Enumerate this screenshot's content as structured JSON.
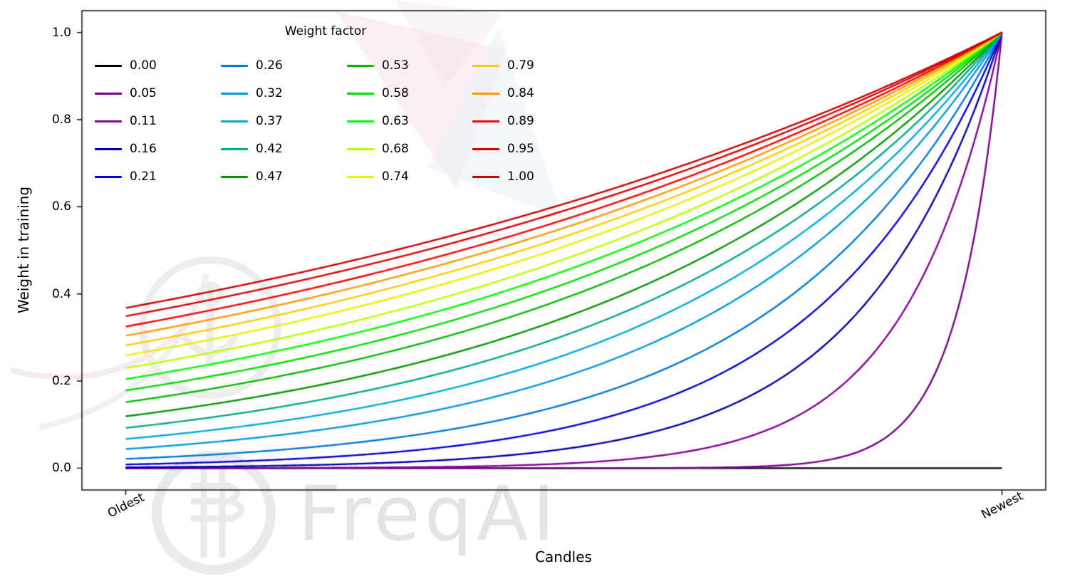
{
  "watermark": {
    "text": "FreqAI"
  },
  "chart_data": {
    "type": "line",
    "title": "",
    "xlabel": "Candles",
    "ylabel": "Weight in training",
    "x_tick_labels": [
      "Oldest",
      "Newest"
    ],
    "y_ticks": [
      "1.0",
      "0.8",
      "0.6",
      "0.4",
      "0.2",
      "0.0"
    ],
    "y_tick_values": [
      1.0,
      0.8,
      0.6,
      0.4,
      0.2,
      0.0
    ],
    "ylim": [
      0.0,
      1.0
    ],
    "grid": false,
    "legend": {
      "title": "Weight factor",
      "position": "upper left",
      "columns": 4,
      "rows": 5
    },
    "curve_formula": "weight(x) = exp(-(1 - x) / weight_factor) for x in [0,1]; weight_factor = 0 gives a flat line at 0; all curves converge to 1.0 at Newest",
    "series": [
      {
        "label": "0.00",
        "weight_factor": 0.0,
        "color": "#000000",
        "oldest_value": 0.0,
        "newest_value": 0.0
      },
      {
        "label": "0.05",
        "weight_factor": 0.05,
        "color": "#770088",
        "oldest_value": 0.0,
        "newest_value": 1.0
      },
      {
        "label": "0.11",
        "weight_factor": 0.11,
        "color": "#880099",
        "oldest_value": 0.0001,
        "newest_value": 1.0
      },
      {
        "label": "0.16",
        "weight_factor": 0.16,
        "color": "#0000aa",
        "oldest_value": 0.002,
        "newest_value": 1.0
      },
      {
        "label": "0.21",
        "weight_factor": 0.21,
        "color": "#0000dd",
        "oldest_value": 0.009,
        "newest_value": 1.0
      },
      {
        "label": "0.26",
        "weight_factor": 0.26,
        "color": "#0077dd",
        "oldest_value": 0.021,
        "newest_value": 1.0
      },
      {
        "label": "0.32",
        "weight_factor": 0.32,
        "color": "#0099dd",
        "oldest_value": 0.044,
        "newest_value": 1.0
      },
      {
        "label": "0.37",
        "weight_factor": 0.37,
        "color": "#00aadd",
        "oldest_value": 0.067,
        "newest_value": 1.0
      },
      {
        "label": "0.42",
        "weight_factor": 0.42,
        "color": "#00aa88",
        "oldest_value": 0.092,
        "newest_value": 1.0
      },
      {
        "label": "0.47",
        "weight_factor": 0.47,
        "color": "#009900",
        "oldest_value": 0.119,
        "newest_value": 1.0
      },
      {
        "label": "0.53",
        "weight_factor": 0.53,
        "color": "#00bb00",
        "oldest_value": 0.152,
        "newest_value": 1.0
      },
      {
        "label": "0.58",
        "weight_factor": 0.58,
        "color": "#00dd00",
        "oldest_value": 0.178,
        "newest_value": 1.0
      },
      {
        "label": "0.63",
        "weight_factor": 0.63,
        "color": "#00ff00",
        "oldest_value": 0.204,
        "newest_value": 1.0
      },
      {
        "label": "0.68",
        "weight_factor": 0.68,
        "color": "#bbff00",
        "oldest_value": 0.23,
        "newest_value": 1.0
      },
      {
        "label": "0.74",
        "weight_factor": 0.74,
        "color": "#eeee00",
        "oldest_value": 0.259,
        "newest_value": 1.0
      },
      {
        "label": "0.79",
        "weight_factor": 0.79,
        "color": "#ffcc00",
        "oldest_value": 0.282,
        "newest_value": 1.0
      },
      {
        "label": "0.84",
        "weight_factor": 0.84,
        "color": "#ff9900",
        "oldest_value": 0.304,
        "newest_value": 1.0
      },
      {
        "label": "0.89",
        "weight_factor": 0.89,
        "color": "#ff0000",
        "oldest_value": 0.325,
        "newest_value": 1.0
      },
      {
        "label": "0.95",
        "weight_factor": 0.95,
        "color": "#dd0000",
        "oldest_value": 0.349,
        "newest_value": 1.0
      },
      {
        "label": "1.00",
        "weight_factor": 1.0,
        "color": "#cc0000",
        "oldest_value": 0.368,
        "newest_value": 1.0
      }
    ]
  }
}
